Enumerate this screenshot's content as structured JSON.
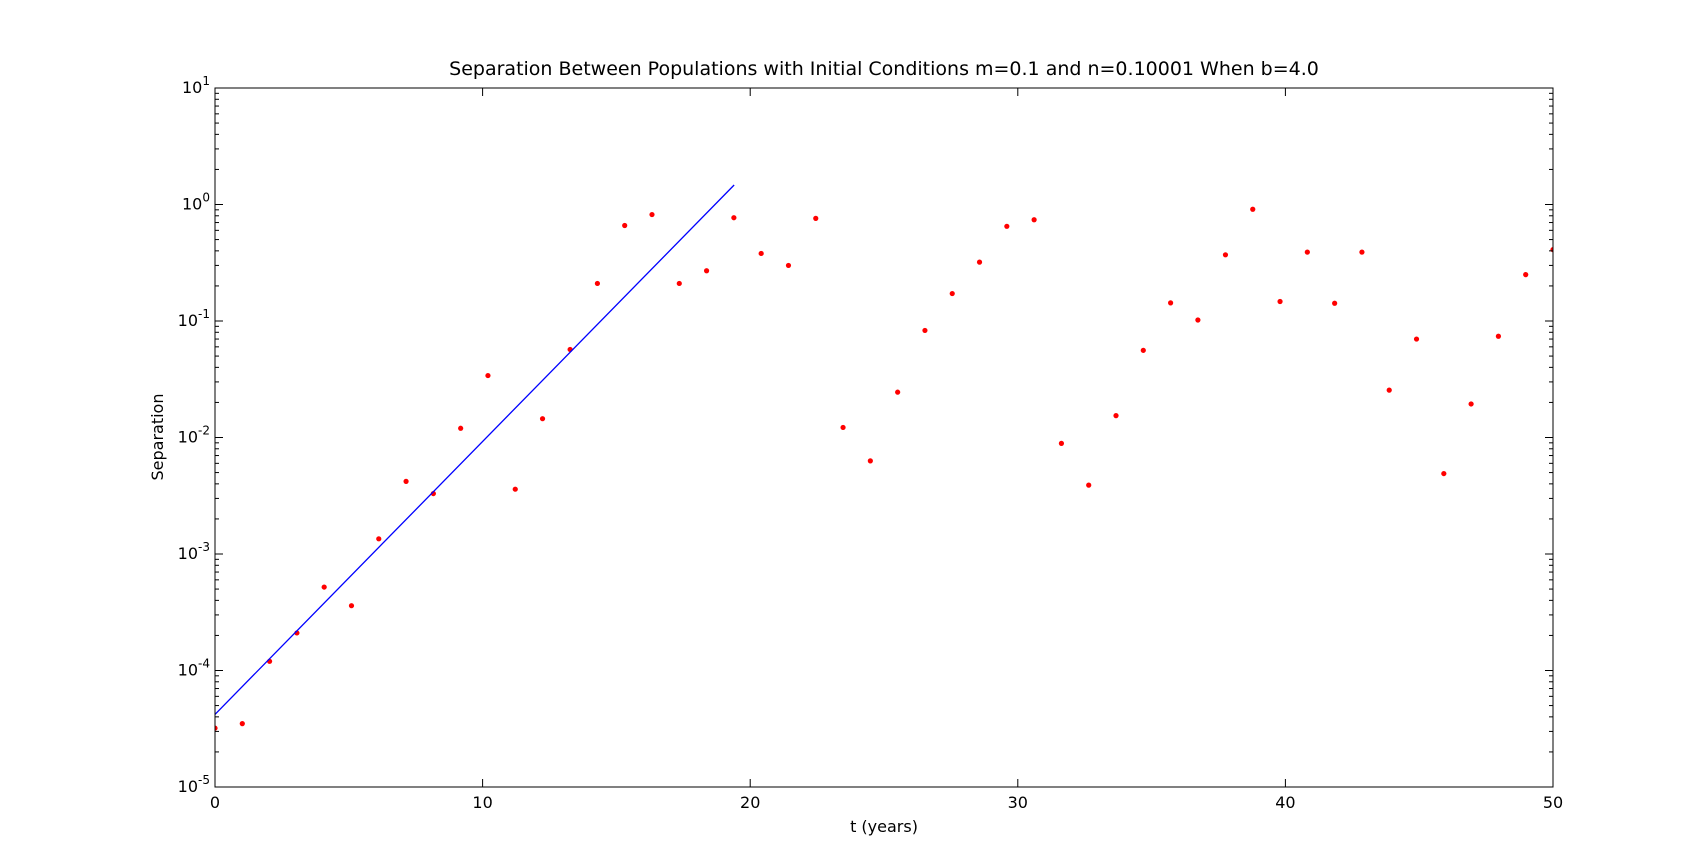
{
  "chart_data": {
    "type": "scatter",
    "title": "Separation Between Populations with Initial Conditions m=0.1 and n=0.10001 When b=4.0",
    "xlabel": "t (years)",
    "ylabel": "Separation",
    "xlim": [
      0,
      50
    ],
    "ylim": [
      1e-05,
      10
    ],
    "yscale": "log",
    "grid": false,
    "xticks": [
      0,
      10,
      20,
      30,
      40,
      50
    ],
    "yticks": [
      {
        "value": 1e-05,
        "base": "10",
        "exp": "-5"
      },
      {
        "value": 0.0001,
        "base": "10",
        "exp": "-4"
      },
      {
        "value": 0.001,
        "base": "10",
        "exp": "-3"
      },
      {
        "value": 0.01,
        "base": "10",
        "exp": "-2"
      },
      {
        "value": 0.1,
        "base": "10",
        "exp": "-1"
      },
      {
        "value": 1,
        "base": "10",
        "exp": "0"
      },
      {
        "value": 10,
        "base": "10",
        "exp": "1"
      }
    ],
    "series": [
      {
        "kind": "points",
        "color": "#ff0000",
        "x": [
          0,
          1.02,
          2.04,
          3.06,
          4.08,
          5.1,
          6.12,
          7.14,
          8.16,
          9.18,
          10.2,
          11.22,
          12.24,
          13.27,
          14.29,
          15.31,
          16.33,
          17.35,
          18.37,
          19.39,
          20.41,
          21.43,
          22.45,
          23.47,
          24.49,
          25.51,
          26.53,
          27.55,
          28.57,
          29.59,
          30.61,
          31.63,
          32.65,
          33.67,
          34.69,
          35.71,
          36.73,
          37.76,
          38.78,
          39.8,
          40.82,
          41.84,
          42.86,
          43.88,
          44.9,
          45.92,
          46.94,
          47.96,
          48.98,
          50
        ],
        "y": [
          3.2e-05,
          3.5e-05,
          0.00012,
          0.00021,
          0.00052,
          0.00036,
          0.00135,
          0.0042,
          0.0033,
          0.012,
          0.034,
          0.0036,
          0.0145,
          0.057,
          0.21,
          0.66,
          0.82,
          0.21,
          0.27,
          0.77,
          0.38,
          0.3,
          0.76,
          0.0122,
          0.0063,
          0.0245,
          0.083,
          0.172,
          0.32,
          0.65,
          0.74,
          0.0089,
          0.0039,
          0.0154,
          0.056,
          0.143,
          0.102,
          0.37,
          0.91,
          0.147,
          0.39,
          0.142,
          0.39,
          0.0255,
          0.07,
          0.0049,
          0.0194,
          0.074,
          0.25,
          0.41
        ]
      },
      {
        "kind": "line",
        "color": "#0000ff",
        "x": [
          0,
          19.4
        ],
        "y": [
          4.2e-05,
          1.47
        ]
      }
    ]
  }
}
